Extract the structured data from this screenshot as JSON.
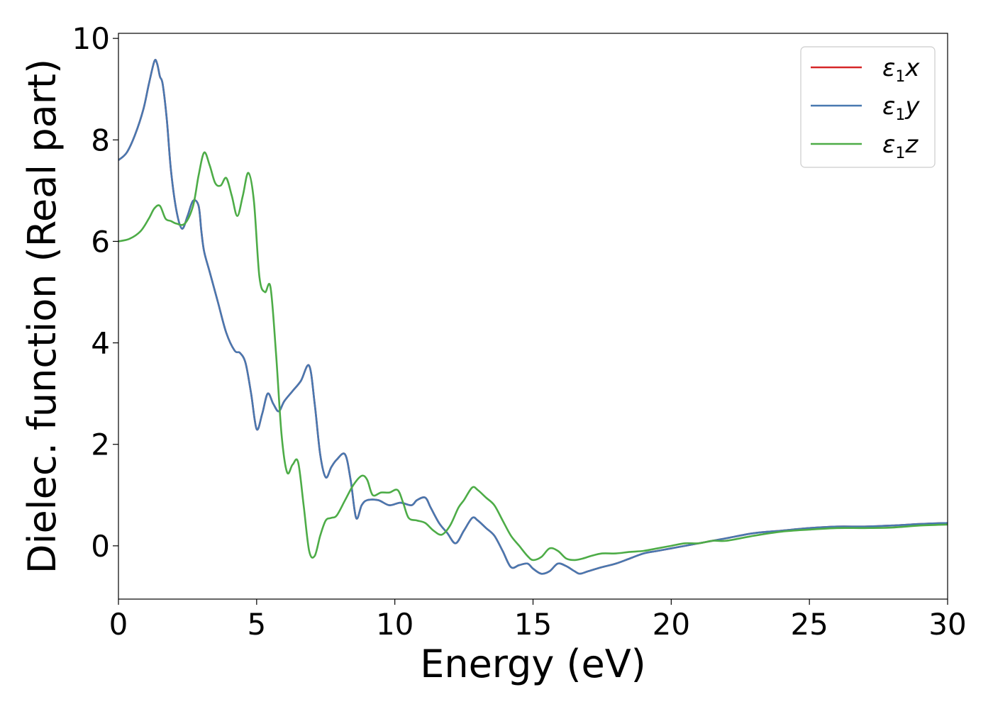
{
  "chart_data": {
    "type": "line",
    "xlabel": "Energy (eV)",
    "ylabel": "Dielec. function (Real part)",
    "xlim": [
      0,
      30
    ],
    "ylim": [
      -1.05,
      10.1
    ],
    "xticks": [
      0,
      5,
      10,
      15,
      20,
      25,
      30
    ],
    "yticks": [
      0,
      2,
      4,
      6,
      8,
      10
    ],
    "grid": false,
    "legend_position": "top-right",
    "series": [
      {
        "name": "x",
        "legend_symbol": "ε",
        "legend_sub": "1",
        "legend_var": "x",
        "color": "#d62728",
        "x": [
          0,
          0.3,
          0.6,
          0.9,
          1.1,
          1.3,
          1.4,
          1.5,
          1.6,
          1.75,
          1.9,
          2.1,
          2.3,
          2.5,
          2.7,
          2.9,
          3.0,
          3.1,
          3.3,
          3.6,
          3.9,
          4.2,
          4.4,
          4.6,
          4.8,
          5.0,
          5.2,
          5.4,
          5.6,
          5.8,
          6.0,
          6.3,
          6.6,
          6.9,
          7.1,
          7.3,
          7.5,
          7.7,
          7.9,
          8.2,
          8.4,
          8.6,
          8.8,
          9.0,
          9.4,
          9.8,
          10.2,
          10.6,
          10.8,
          11.1,
          11.3,
          11.6,
          11.9,
          12.2,
          12.5,
          12.8,
          13.0,
          13.3,
          13.6,
          13.9,
          14.2,
          14.5,
          14.8,
          15.0,
          15.3,
          15.6,
          15.9,
          16.2,
          16.5,
          16.7,
          17.0,
          17.5,
          18.0,
          18.5,
          19.0,
          19.5,
          20.0,
          20.5,
          21.0,
          21.5,
          22.0,
          23.0,
          24.0,
          25.0,
          26.0,
          27.0,
          28.0,
          29.0,
          30.0
        ],
        "values": [
          7.6,
          7.75,
          8.1,
          8.6,
          9.1,
          9.55,
          9.5,
          9.25,
          9.1,
          8.4,
          7.4,
          6.6,
          6.25,
          6.5,
          6.8,
          6.7,
          6.2,
          5.8,
          5.4,
          4.8,
          4.2,
          3.85,
          3.8,
          3.6,
          3.0,
          2.3,
          2.6,
          3.0,
          2.8,
          2.65,
          2.85,
          3.05,
          3.25,
          3.55,
          2.8,
          1.8,
          1.35,
          1.55,
          1.7,
          1.8,
          1.3,
          0.55,
          0.8,
          0.9,
          0.9,
          0.8,
          0.85,
          0.8,
          0.9,
          0.95,
          0.75,
          0.45,
          0.25,
          0.05,
          0.3,
          0.55,
          0.5,
          0.35,
          0.2,
          -0.1,
          -0.42,
          -0.38,
          -0.35,
          -0.45,
          -0.55,
          -0.5,
          -0.35,
          -0.4,
          -0.5,
          -0.55,
          -0.5,
          -0.42,
          -0.35,
          -0.25,
          -0.15,
          -0.1,
          -0.05,
          0.0,
          0.05,
          0.1,
          0.15,
          0.25,
          0.3,
          0.35,
          0.38,
          0.38,
          0.4,
          0.43,
          0.45
        ]
      },
      {
        "name": "y",
        "legend_symbol": "ε",
        "legend_sub": "1",
        "legend_var": "y",
        "color": "#4878b0",
        "x": [
          0,
          0.3,
          0.6,
          0.9,
          1.1,
          1.3,
          1.4,
          1.5,
          1.6,
          1.75,
          1.9,
          2.1,
          2.3,
          2.5,
          2.7,
          2.9,
          3.0,
          3.1,
          3.3,
          3.6,
          3.9,
          4.2,
          4.4,
          4.6,
          4.8,
          5.0,
          5.2,
          5.4,
          5.6,
          5.8,
          6.0,
          6.3,
          6.6,
          6.9,
          7.1,
          7.3,
          7.5,
          7.7,
          7.9,
          8.2,
          8.4,
          8.6,
          8.8,
          9.0,
          9.4,
          9.8,
          10.2,
          10.6,
          10.8,
          11.1,
          11.3,
          11.6,
          11.9,
          12.2,
          12.5,
          12.8,
          13.0,
          13.3,
          13.6,
          13.9,
          14.2,
          14.5,
          14.8,
          15.0,
          15.3,
          15.6,
          15.9,
          16.2,
          16.5,
          16.7,
          17.0,
          17.5,
          18.0,
          18.5,
          19.0,
          19.5,
          20.0,
          20.5,
          21.0,
          21.5,
          22.0,
          23.0,
          24.0,
          25.0,
          26.0,
          27.0,
          28.0,
          29.0,
          30.0
        ],
        "values": [
          7.6,
          7.75,
          8.1,
          8.6,
          9.1,
          9.55,
          9.5,
          9.25,
          9.1,
          8.4,
          7.4,
          6.6,
          6.25,
          6.5,
          6.8,
          6.7,
          6.2,
          5.8,
          5.4,
          4.8,
          4.2,
          3.85,
          3.8,
          3.6,
          3.0,
          2.3,
          2.6,
          3.0,
          2.8,
          2.65,
          2.85,
          3.05,
          3.25,
          3.55,
          2.8,
          1.8,
          1.35,
          1.55,
          1.7,
          1.8,
          1.3,
          0.55,
          0.8,
          0.9,
          0.9,
          0.8,
          0.85,
          0.8,
          0.9,
          0.95,
          0.75,
          0.45,
          0.25,
          0.05,
          0.3,
          0.55,
          0.5,
          0.35,
          0.2,
          -0.1,
          -0.42,
          -0.38,
          -0.35,
          -0.45,
          -0.55,
          -0.5,
          -0.35,
          -0.4,
          -0.5,
          -0.55,
          -0.5,
          -0.42,
          -0.35,
          -0.25,
          -0.15,
          -0.1,
          -0.05,
          0.0,
          0.05,
          0.1,
          0.15,
          0.25,
          0.3,
          0.35,
          0.38,
          0.38,
          0.4,
          0.43,
          0.45
        ]
      },
      {
        "name": "z",
        "legend_symbol": "ε",
        "legend_sub": "1",
        "legend_var": "z",
        "color": "#4dac47",
        "x": [
          0,
          0.4,
          0.8,
          1.1,
          1.3,
          1.5,
          1.7,
          1.9,
          2.1,
          2.4,
          2.7,
          2.9,
          3.1,
          3.3,
          3.5,
          3.7,
          3.9,
          4.1,
          4.3,
          4.5,
          4.7,
          4.9,
          5.1,
          5.3,
          5.5,
          5.7,
          5.9,
          6.1,
          6.3,
          6.5,
          6.7,
          6.9,
          7.1,
          7.3,
          7.5,
          7.7,
          7.9,
          8.2,
          8.5,
          8.8,
          9.0,
          9.2,
          9.5,
          9.8,
          10.1,
          10.3,
          10.5,
          10.8,
          11.1,
          11.4,
          11.7,
          12.0,
          12.3,
          12.5,
          12.8,
          13.0,
          13.3,
          13.6,
          13.9,
          14.2,
          14.5,
          14.8,
          15.0,
          15.3,
          15.6,
          15.9,
          16.2,
          16.5,
          16.8,
          17.1,
          17.5,
          18.0,
          18.5,
          19.0,
          19.5,
          20.0,
          20.5,
          21.0,
          21.5,
          22.0,
          23.0,
          24.0,
          25.0,
          26.0,
          27.0,
          28.0,
          29.0,
          30.0
        ],
        "values": [
          6.0,
          6.05,
          6.2,
          6.45,
          6.65,
          6.7,
          6.45,
          6.4,
          6.35,
          6.35,
          6.7,
          7.3,
          7.75,
          7.5,
          7.15,
          7.1,
          7.25,
          6.9,
          6.5,
          6.9,
          7.35,
          6.8,
          5.3,
          5.0,
          5.1,
          3.8,
          2.2,
          1.45,
          1.6,
          1.65,
          0.8,
          -0.1,
          -0.2,
          0.2,
          0.5,
          0.55,
          0.6,
          0.9,
          1.2,
          1.38,
          1.3,
          1.0,
          1.05,
          1.05,
          1.1,
          0.85,
          0.55,
          0.5,
          0.45,
          0.3,
          0.22,
          0.4,
          0.75,
          0.9,
          1.15,
          1.1,
          0.95,
          0.8,
          0.5,
          0.2,
          0.0,
          -0.2,
          -0.28,
          -0.22,
          -0.05,
          -0.1,
          -0.25,
          -0.28,
          -0.25,
          -0.2,
          -0.15,
          -0.15,
          -0.12,
          -0.1,
          -0.05,
          0.0,
          0.05,
          0.05,
          0.1,
          0.1,
          0.2,
          0.28,
          0.32,
          0.35,
          0.35,
          0.36,
          0.4,
          0.42
        ]
      }
    ]
  }
}
